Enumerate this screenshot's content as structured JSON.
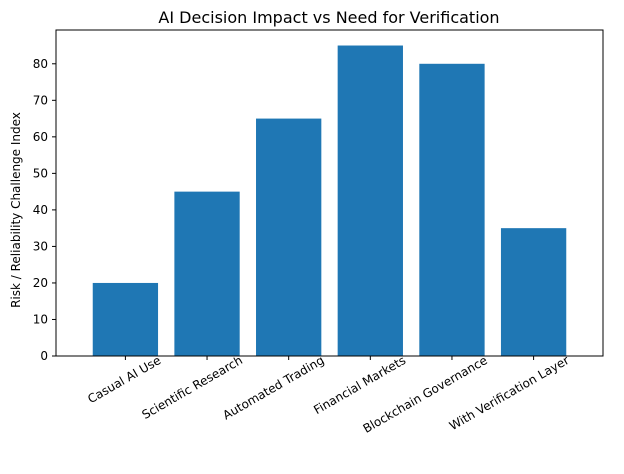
{
  "chart_data": {
    "type": "bar",
    "title": "AI Decision Impact vs Need for Verification",
    "xlabel": "",
    "ylabel": "Risk / Reliability Challenge Index",
    "categories": [
      "Casual AI Use",
      "Scientific Research",
      "Automated Trading",
      "Financial Markets",
      "Blockchain Governance",
      "With Verification Layer"
    ],
    "values": [
      20,
      45,
      65,
      85,
      80,
      35
    ],
    "ylim": [
      0,
      89.25
    ],
    "yticks": [
      0,
      10,
      20,
      30,
      40,
      50,
      60,
      70,
      80
    ],
    "grid": false,
    "legend": "none",
    "colors": {
      "bar": "#1f77b4",
      "axis": "#000000"
    }
  }
}
